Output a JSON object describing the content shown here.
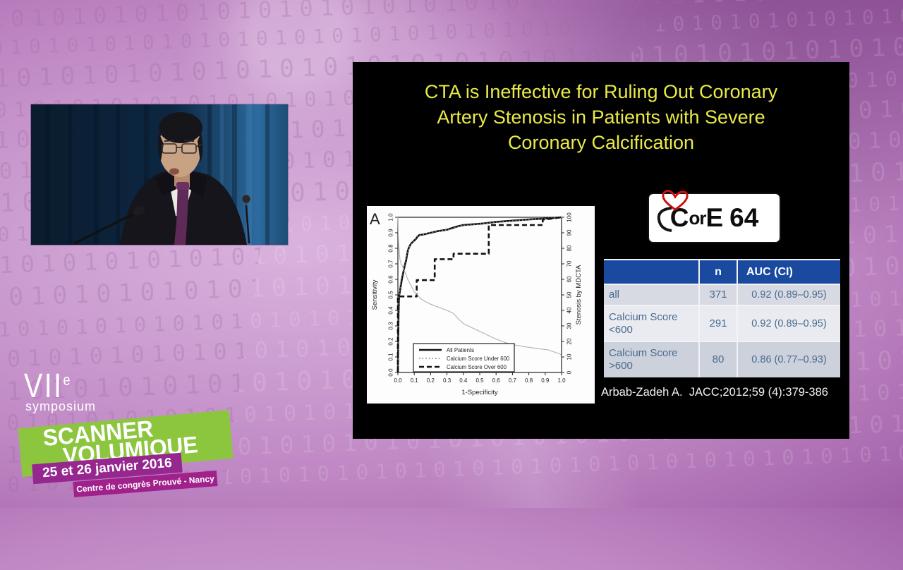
{
  "colors": {
    "background_purple": "#bf87c4",
    "slide_bg": "#000000",
    "title_yellow": "#e9ea48",
    "table_header_blue": "#1a4aa0",
    "table_text_blue": "#4a6b91",
    "banner_green": "#8cc63f",
    "ribbon_magenta": "#96278f",
    "heart_red": "#cc1111"
  },
  "background": {
    "binary_unit": "10101010"
  },
  "slide": {
    "title_lines": [
      "CTA is Ineffective for Ruling Out Coronary",
      "Artery Stenosis in Patients with Severe",
      "Coronary Calcification"
    ],
    "logo": {
      "c": "C",
      "or": "or",
      "e": "E",
      "num": "64"
    },
    "table": {
      "headers": [
        "",
        "n",
        "AUC (CI)"
      ],
      "rows": [
        [
          "all",
          "371",
          "0.92 (0.89–0.95)"
        ],
        [
          "Calcium Score <600",
          "291",
          "0.92 (0.89–0.95)"
        ],
        [
          "Calcium Score >600",
          "80",
          "0.86 (0.77–0.93)"
        ]
      ]
    },
    "citation": "Arbab-Zadeh A.  JACC;2012;59 (4):379-386"
  },
  "footer_logo": {
    "edition": "VII",
    "edition_sup": "e",
    "symposium": "symposium",
    "banner_line1": "SCANNER",
    "banner_line2": "VOLUMIQUE",
    "date": "25 et 26 janvier 2016",
    "venue": "Centre de congrès Prouvé - Nancy"
  },
  "chart_data": {
    "type": "line",
    "panel_label": "A",
    "xlabel": "1-Specificity",
    "ylabel_left": "Sensitivity",
    "ylabel_right": "Stenosis by MDCTA",
    "xlim": [
      0,
      1
    ],
    "ylim": [
      0,
      1
    ],
    "ylim_right": [
      0,
      100
    ],
    "grid": false,
    "legend_position": "lower-center",
    "xticks": [
      0,
      0.1,
      0.2,
      0.3,
      0.4,
      0.5,
      0.6,
      0.7,
      0.8,
      0.9,
      1.0
    ],
    "xtick_labels": [
      "0.0",
      "0.1",
      "0.2",
      "0.3",
      "0.4",
      "0.5",
      "0.6",
      "0.7",
      "0.8",
      "0.9",
      "1.0"
    ],
    "yticks_left": [
      0,
      0.1,
      0.2,
      0.3,
      0.4,
      0.5,
      0.6,
      0.7,
      0.8,
      0.9,
      1.0
    ],
    "ytick_labels_left": [
      "0.0",
      "0.1",
      "0.2",
      "0.3",
      "0.4",
      "0.5",
      "0.6",
      "0.7",
      "0.8",
      "0.9",
      "1.0"
    ],
    "yticks_right": [
      0,
      10,
      20,
      30,
      40,
      50,
      60,
      70,
      80,
      90,
      100
    ],
    "ytick_labels_right": [
      "0",
      "10",
      "20",
      "30",
      "40",
      "50",
      "60",
      "70",
      "80",
      "90",
      "100"
    ],
    "series": [
      {
        "name": "All Patients",
        "style": "solid",
        "color": "#111111",
        "width": 2.6,
        "in_legend": true,
        "points": [
          [
            0,
            0
          ],
          [
            0.004,
            0.37
          ],
          [
            0.006,
            0.46
          ],
          [
            0.008,
            0.5
          ],
          [
            0.012,
            0.52
          ],
          [
            0.016,
            0.55
          ],
          [
            0.02,
            0.57
          ],
          [
            0.024,
            0.6
          ],
          [
            0.03,
            0.63
          ],
          [
            0.036,
            0.66
          ],
          [
            0.042,
            0.69
          ],
          [
            0.05,
            0.72
          ],
          [
            0.056,
            0.76
          ],
          [
            0.062,
            0.79
          ],
          [
            0.07,
            0.81
          ],
          [
            0.08,
            0.83
          ],
          [
            0.095,
            0.845
          ],
          [
            0.11,
            0.86
          ],
          [
            0.12,
            0.875
          ],
          [
            0.13,
            0.885
          ],
          [
            0.16,
            0.89
          ],
          [
            0.2,
            0.9
          ],
          [
            0.24,
            0.91
          ],
          [
            0.3,
            0.92
          ],
          [
            0.33,
            0.93
          ],
          [
            0.36,
            0.94
          ],
          [
            0.4,
            0.95
          ],
          [
            0.46,
            0.955
          ],
          [
            0.52,
            0.96
          ],
          [
            0.6,
            0.97
          ],
          [
            0.7,
            0.978
          ],
          [
            0.8,
            0.986
          ],
          [
            0.9,
            0.992
          ],
          [
            1,
            1
          ]
        ]
      },
      {
        "name": "Calcium Score Under 600",
        "style": "dotted",
        "color": "#8a8a8a",
        "width": 1.8,
        "in_legend": true,
        "points": [
          [
            0,
            0
          ],
          [
            0.004,
            0.4
          ],
          [
            0.006,
            0.48
          ],
          [
            0.01,
            0.52
          ],
          [
            0.014,
            0.56
          ],
          [
            0.02,
            0.6
          ],
          [
            0.026,
            0.63
          ],
          [
            0.032,
            0.66
          ],
          [
            0.04,
            0.7
          ],
          [
            0.05,
            0.74
          ],
          [
            0.058,
            0.78
          ],
          [
            0.066,
            0.8
          ],
          [
            0.075,
            0.82
          ],
          [
            0.09,
            0.84
          ],
          [
            0.105,
            0.86
          ],
          [
            0.12,
            0.88
          ],
          [
            0.14,
            0.885
          ],
          [
            0.18,
            0.895
          ],
          [
            0.22,
            0.905
          ],
          [
            0.28,
            0.915
          ],
          [
            0.33,
            0.925
          ],
          [
            0.38,
            0.945
          ],
          [
            0.44,
            0.95
          ],
          [
            0.5,
            0.958
          ],
          [
            0.6,
            0.968
          ],
          [
            0.7,
            0.976
          ],
          [
            0.8,
            0.985
          ],
          [
            0.9,
            0.992
          ],
          [
            1,
            1
          ]
        ]
      },
      {
        "name": "Calcium Score Over 600",
        "style": "dashed",
        "color": "#111111",
        "width": 2.6,
        "in_legend": true,
        "points": [
          [
            0,
            0
          ],
          [
            0,
            0.49
          ],
          [
            0.115,
            0.49
          ],
          [
            0.115,
            0.595
          ],
          [
            0.225,
            0.595
          ],
          [
            0.225,
            0.73
          ],
          [
            0.34,
            0.73
          ],
          [
            0.34,
            0.765
          ],
          [
            0.555,
            0.765
          ],
          [
            0.555,
            0.95
          ],
          [
            0.885,
            0.95
          ],
          [
            0.885,
            0.985
          ],
          [
            0.93,
            0.99
          ],
          [
            1,
            1
          ]
        ]
      },
      {
        "name": "Stenosis by MDCTA frequency",
        "style": "thin",
        "color": "#b2b2b2",
        "width": 1.1,
        "in_legend": false,
        "points": [
          [
            0,
            1.0
          ],
          [
            0.004,
            0.84
          ],
          [
            0.008,
            0.79
          ],
          [
            0.012,
            0.73
          ],
          [
            0.02,
            0.7
          ],
          [
            0.03,
            0.68
          ],
          [
            0.04,
            0.655
          ],
          [
            0.05,
            0.63
          ],
          [
            0.06,
            0.6
          ],
          [
            0.08,
            0.56
          ],
          [
            0.1,
            0.52
          ],
          [
            0.12,
            0.5
          ],
          [
            0.14,
            0.475
          ],
          [
            0.17,
            0.455
          ],
          [
            0.2,
            0.44
          ],
          [
            0.25,
            0.42
          ],
          [
            0.3,
            0.4
          ],
          [
            0.34,
            0.38
          ],
          [
            0.37,
            0.345
          ],
          [
            0.4,
            0.315
          ],
          [
            0.44,
            0.295
          ],
          [
            0.5,
            0.265
          ],
          [
            0.55,
            0.24
          ],
          [
            0.6,
            0.215
          ],
          [
            0.65,
            0.195
          ],
          [
            0.7,
            0.18
          ],
          [
            0.78,
            0.165
          ],
          [
            0.85,
            0.155
          ],
          [
            0.92,
            0.145
          ],
          [
            0.96,
            0.13
          ],
          [
            0.99,
            0.12
          ],
          [
            1.0,
            0.105
          ]
        ]
      }
    ]
  }
}
